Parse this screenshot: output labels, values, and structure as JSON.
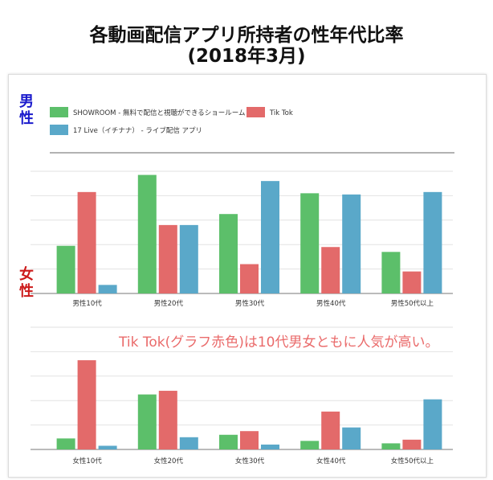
{
  "title": {
    "line1": "各動画配信アプリ所持者の性年代比率",
    "line2": "(2018年3月)"
  },
  "legend": [
    {
      "name": "SHOWROOM - 無料で配信と視聴ができるショールーム",
      "color": "#5cbf6a"
    },
    {
      "name": "Tik Tok",
      "color": "#e36a6a"
    },
    {
      "name": "17 Live（イチナナ） - ライブ配信 アプリ",
      "color": "#5aa8c9"
    }
  ],
  "annotation": "Tik Tok(グラフ赤色)は10代男女ともに人気が高い。",
  "chart_data": [
    {
      "type": "bar",
      "side_label": "男性",
      "side_label_color": "#1a1acc",
      "categories": [
        "男性10代",
        "男性20代",
        "男性30代",
        "男性40代",
        "男性50代以上"
      ],
      "series": [
        {
          "name": "SHOWROOM - 無料で配信と視聴ができるショールーム",
          "values": [
            19.5,
            48.5,
            32.5,
            41,
            17
          ]
        },
        {
          "name": "Tik Tok",
          "values": [
            41.5,
            28,
            12,
            19,
            9
          ]
        },
        {
          "name": "17 Live（イチナナ） - ライブ配信 アプリ",
          "values": [
            3.5,
            28,
            46,
            40.5,
            41.5
          ]
        }
      ],
      "ylim": [
        0,
        50
      ],
      "grid": true
    },
    {
      "type": "bar",
      "side_label": "女性",
      "side_label_color": "#cc1a1a",
      "categories": [
        "女性10代",
        "女性20代",
        "女性30代",
        "女性40代",
        "女性50代以上"
      ],
      "series": [
        {
          "name": "SHOWROOM - 無料で配信と視聴ができるショールーム",
          "values": [
            4.5,
            22.5,
            6,
            3.5,
            2.5
          ]
        },
        {
          "name": "Tik Tok",
          "values": [
            36.5,
            24,
            7.5,
            15.5,
            4
          ]
        },
        {
          "name": "17 Live（イチナナ） - ライブ配信 アプリ",
          "values": [
            1.5,
            5,
            2,
            9,
            20.5
          ]
        }
      ],
      "ylim": [
        0,
        50
      ],
      "grid": true
    }
  ]
}
